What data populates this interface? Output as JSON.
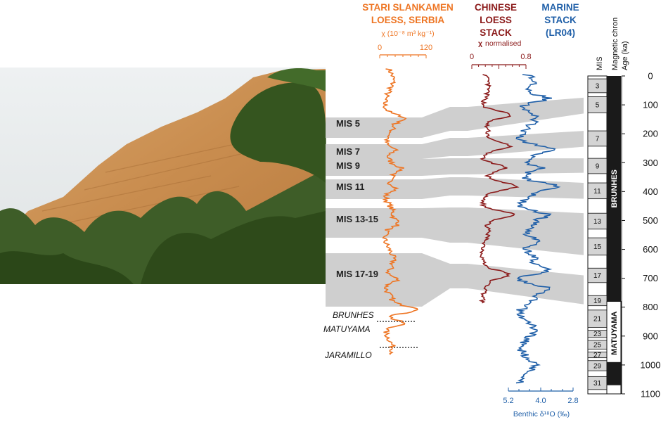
{
  "headers": {
    "serbia_line1": "STARI SLANKAMEN",
    "serbia_line2": "LOESS, SERBIA",
    "serbia_units": "χ (10⁻⁸ m³ kg⁻¹)",
    "china_line1": "CHINESE",
    "china_line2": "LOESS",
    "china_line3": "STACK",
    "china_units_symbol": "χ",
    "china_units_text": "normalised",
    "marine_line1": "MARINE",
    "marine_line2": "STACK",
    "marine_line3": "(LR04)",
    "mis_col": "MIS",
    "chron_col": "Magnetic chron",
    "age_col": "Age (ka)"
  },
  "axes": {
    "serbia_ticks": [
      "0",
      "120"
    ],
    "china_ticks": [
      "0",
      "0.8"
    ],
    "marine_ticks": [
      "5.2",
      "4.0",
      "2.8"
    ],
    "marine_label": "Benthic δ¹⁸O (‰)",
    "age_ticks": [
      "0",
      "100",
      "200",
      "300",
      "400",
      "500",
      "600",
      "700",
      "800",
      "900",
      "1000",
      "1100"
    ]
  },
  "mis_labels": [
    "MIS 5",
    "MIS 7",
    "MIS 9",
    "MIS 11",
    "MIS 13-15",
    "MIS 17-19"
  ],
  "boundary_labels": [
    "BRUNHES",
    "MATUYAMA",
    "JARAMILLO"
  ],
  "chron_labels": [
    "BRUNHES",
    "MATUYAMA"
  ],
  "mis_numbers": [
    "3",
    "5",
    "7",
    "9",
    "11",
    "13",
    "15",
    "17",
    "19",
    "21",
    "23",
    "25",
    "27",
    "29",
    "31"
  ],
  "colors": {
    "serbia": "#ee7523",
    "china": "#8b1a1a",
    "marine": "#1f5fa8",
    "band": "#cfcfcf",
    "mis_box": "#d4d4d4"
  },
  "chart_data": {
    "type": "line",
    "y_axis": "Age (ka)",
    "ylim": [
      0,
      1100
    ],
    "series": [
      {
        "name": "STARI SLANKAMEN LOESS, SERBIA",
        "units": "χ (10⁻⁸ m³ kg⁻¹)",
        "xlim": [
          0,
          120
        ]
      },
      {
        "name": "CHINESE LOESS STACK",
        "units": "χ normalised",
        "xlim": [
          0,
          0.8
        ]
      },
      {
        "name": "MARINE STACK (LR04)",
        "units": "Benthic δ¹⁸O (‰)",
        "xlim": [
          5.2,
          2.8
        ]
      }
    ],
    "interglacials": [
      {
        "label": "MIS 5",
        "top_ka": 75,
        "bottom_ka": 130
      },
      {
        "label": "MIS 7",
        "top_ka": 190,
        "bottom_ka": 245
      },
      {
        "label": "MIS 9",
        "top_ka": 285,
        "bottom_ka": 335
      },
      {
        "label": "MIS 11",
        "top_ka": 370,
        "bottom_ka": 425
      },
      {
        "label": "MIS 13-15",
        "top_ka": 475,
        "bottom_ka": 620
      },
      {
        "label": "MIS 17-19",
        "top_ka": 690,
        "bottom_ka": 790
      }
    ],
    "chrons": [
      {
        "name": "BRUNHES",
        "top_ka": 0,
        "bottom_ka": 780
      },
      {
        "name": "MATUYAMA",
        "top_ka": 780,
        "bottom_ka": 1100
      }
    ]
  }
}
